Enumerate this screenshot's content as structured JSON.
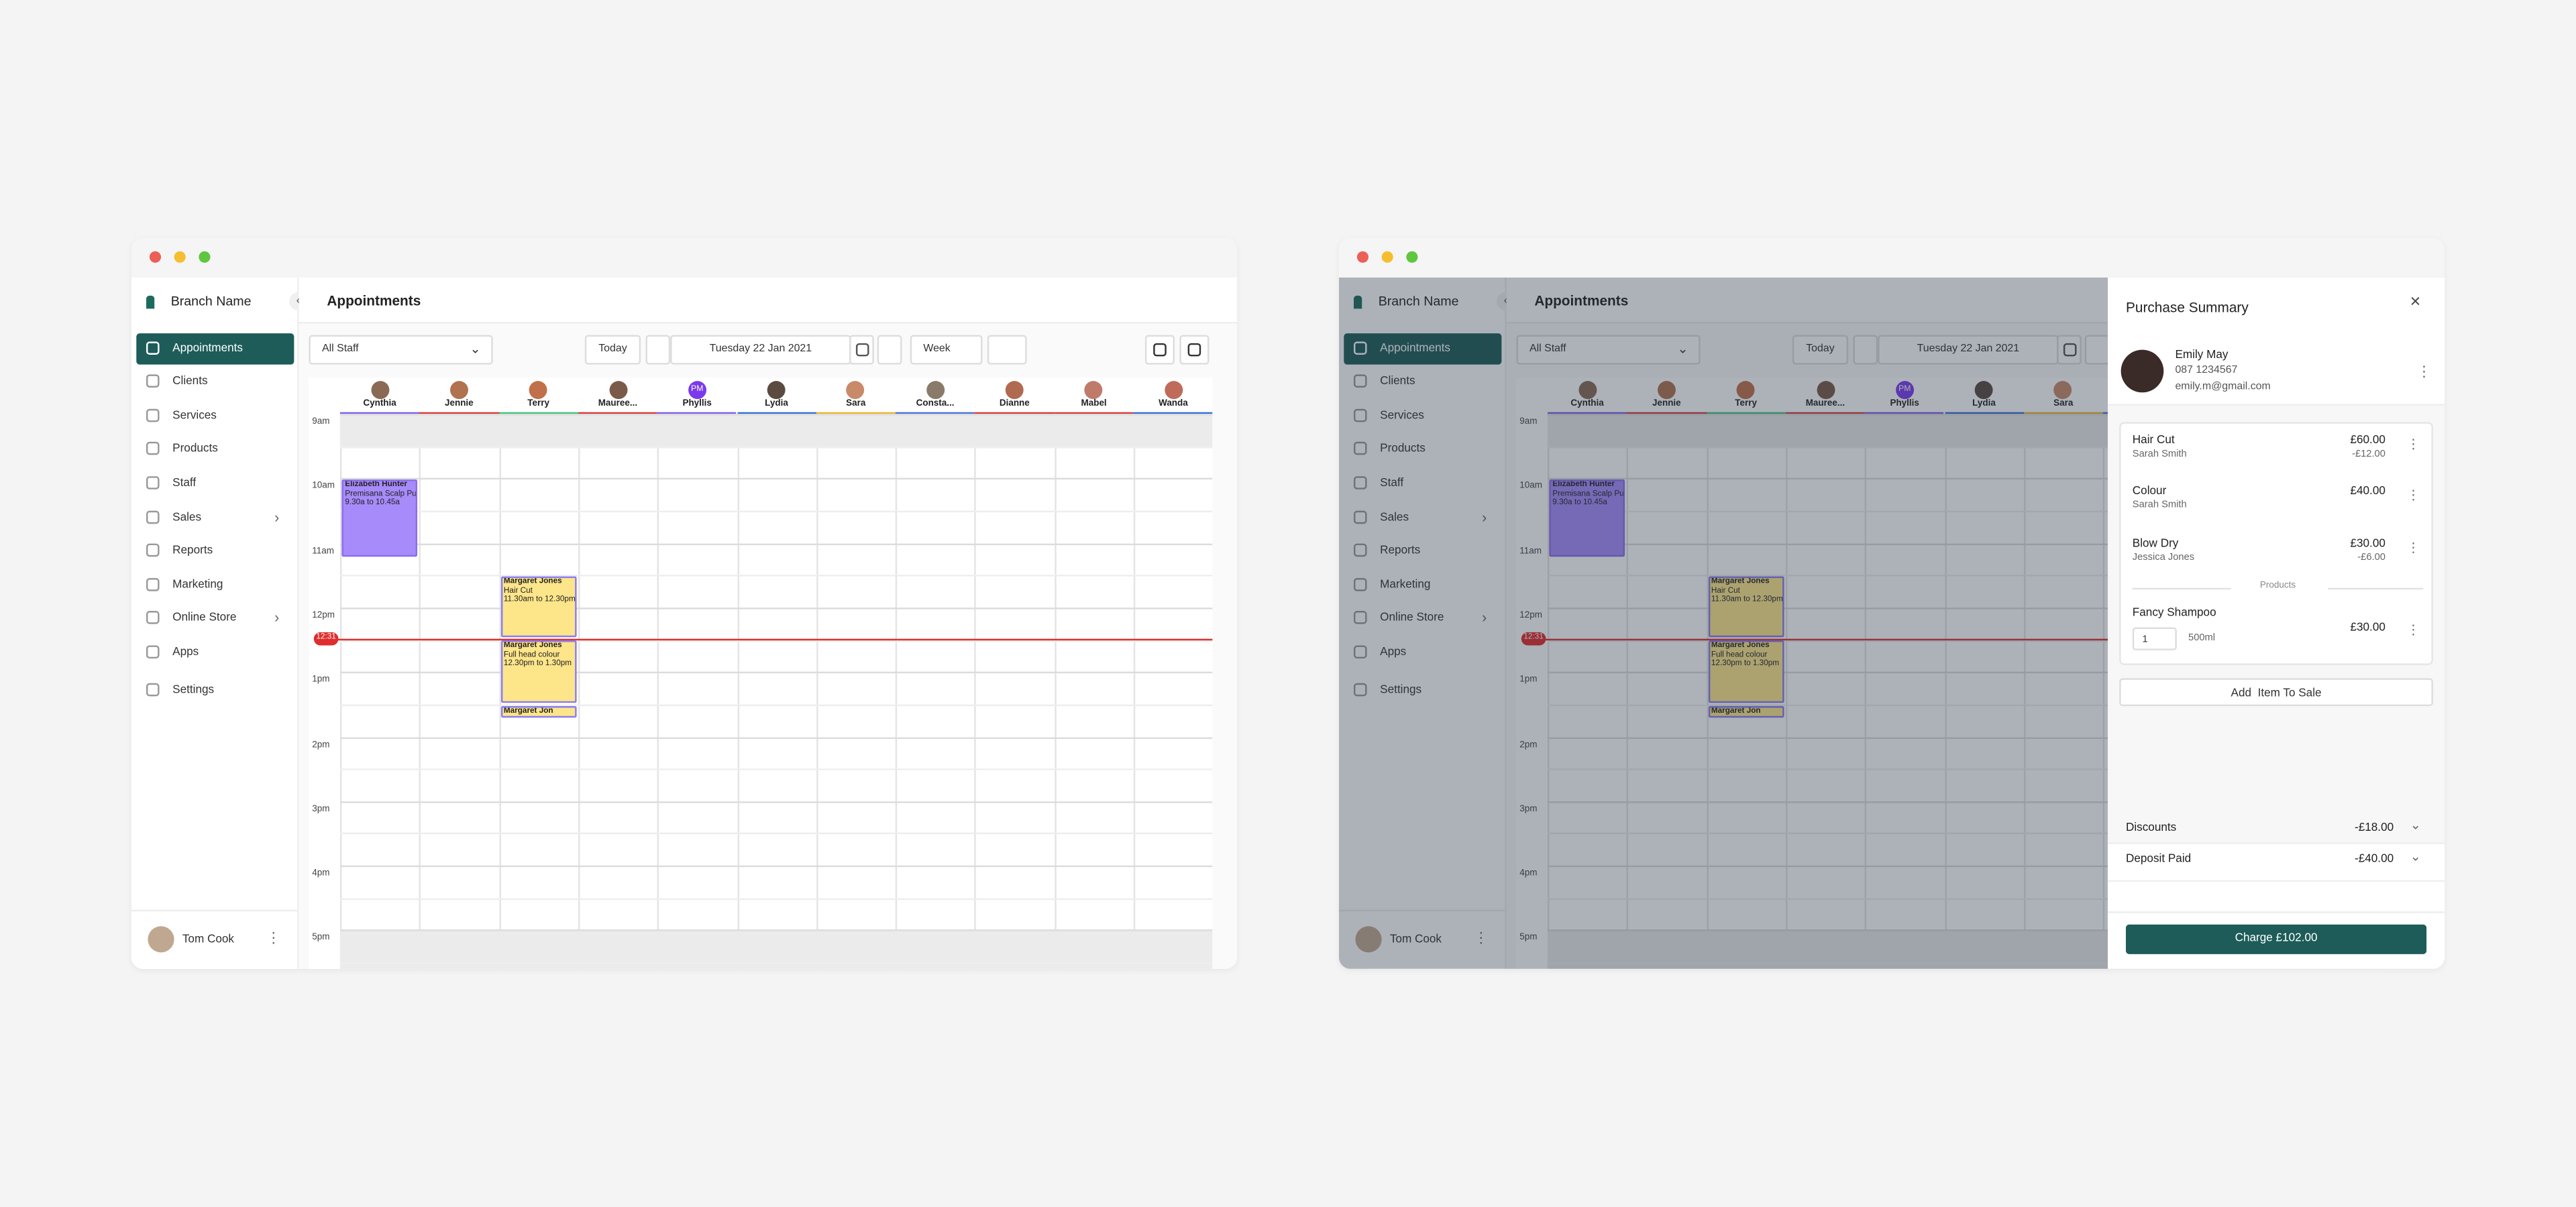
{
  "app": {
    "brand": "Branch Name",
    "page_title": "Appointments",
    "nav": [
      {
        "label": "Appointments"
      },
      {
        "label": "Clients"
      },
      {
        "label": "Services"
      },
      {
        "label": "Products"
      },
      {
        "label": "Staff"
      },
      {
        "label": "Sales",
        "submenu": true
      },
      {
        "label": "Reports"
      },
      {
        "label": "Marketing"
      },
      {
        "label": "Online Store",
        "submenu": true
      },
      {
        "label": "Apps"
      },
      {
        "label": "Settings"
      }
    ],
    "user": "Tom Cook",
    "toolbar": {
      "staff_filter": "All Staff",
      "today": "Today",
      "date": "Tuesday 22 Jan 2021",
      "view": "Week"
    },
    "staff": [
      {
        "name": "Cynthia",
        "color": "#7c5cf0",
        "appointments": [
          {
            "client": "Elizabeth Hunter",
            "service": "Premisana Scalp Pu",
            "time": "9.30a to 10.45a"
          }
        ]
      },
      {
        "name": "Jennie",
        "color": "#d63a3a"
      },
      {
        "name": "Terry",
        "color": "#3fc47a",
        "appointments": [
          {
            "client": "Margaret Jones",
            "service": "Hair Cut",
            "time": "11.30am to 12.30pm"
          },
          {
            "client": "Margaret Jones",
            "service": "Full head colour",
            "time": "12.30pm to 1.30pm"
          },
          {
            "client": "Margaret Jon"
          }
        ]
      },
      {
        "name": "Mauree...",
        "color": "#d63a3a"
      },
      {
        "name": "Phyllis",
        "initials": "PM",
        "color": "#7c5cf0"
      },
      {
        "name": "Lydia",
        "color": "#2f6fd6"
      },
      {
        "name": "Sara",
        "color": "#f0b429"
      },
      {
        "name": "Consta...",
        "color": "#4a6fe0"
      },
      {
        "name": "Dianne",
        "color": "#d63a3a"
      },
      {
        "name": "Mabel",
        "color": "#d63a3a"
      },
      {
        "name": "Wanda",
        "color": "#2f6fd6"
      }
    ],
    "times": [
      "9am",
      "10am",
      "11am",
      "12pm",
      "1pm",
      "2pm",
      "3pm",
      "4pm",
      "5pm"
    ],
    "now": "12:31"
  },
  "purchase": {
    "title": "Purchase Summary",
    "client": {
      "name": "Emily May",
      "phone": "087 1234567",
      "email": "emily.m@gmail.com"
    },
    "items": [
      {
        "name": "Hair Cut",
        "staff": "Sarah Smith",
        "price": "£60.00",
        "discount": "-£12.00"
      },
      {
        "name": "Colour",
        "staff": "Sarah Smith",
        "price": "£40.00"
      },
      {
        "name": "Blow Dry",
        "staff": "Jessica Jones",
        "price": "£30.00",
        "discount": "-£6.00"
      }
    ],
    "products_label": "Products",
    "product": {
      "name": "Fancy Shampoo",
      "qty": "1",
      "size": "500ml",
      "price": "£30.00"
    },
    "add_button": "Add  Item To Sale",
    "discounts": {
      "label": "Discounts",
      "value": "-£18.00"
    },
    "deposit": {
      "label": "Deposit Paid",
      "value": "-£40.00"
    },
    "charge": "Charge £102.00"
  }
}
